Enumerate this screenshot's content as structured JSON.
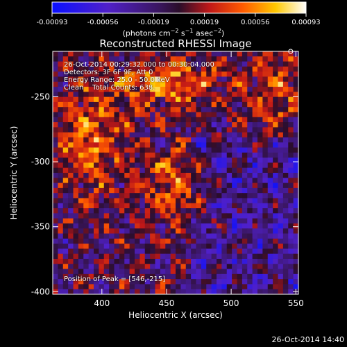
{
  "chart_data": {
    "type": "heatmap",
    "title": "Reconstructed RHESSI Image",
    "xlabel": "Heliocentric X (arcsec)",
    "ylabel": "Heliocentric Y (arcsec)",
    "xlim": [
      362,
      552
    ],
    "ylim": [
      -402,
      -215
    ],
    "xticks": [
      400,
      450,
      500,
      550
    ],
    "yticks": [
      -250,
      -300,
      -350,
      -400
    ],
    "colorbar": {
      "ticks": [
        "-0.00093",
        "-0.00056",
        "-0.00019",
        "0.00019",
        "0.00056",
        "0.00093"
      ],
      "range": [
        -0.00093,
        0.00093
      ],
      "units_prefix": "(photons cm",
      "units_mid": " s",
      "units_mid2": " asec",
      "units_suffix": ")",
      "exp1": "−2",
      "exp2": "−1",
      "exp3": "−2"
    },
    "peak": {
      "x": 546,
      "y": -215
    },
    "peak_label": "Position of Peak = [546,-215]"
  },
  "annotations": {
    "line1": "26-Oct-2014 00:29:32.000 to 00:30:04.000",
    "line2": "Detectors: 3F 6F 9F, Att 0",
    "line3": "Energy Range: 25.0 - 50.0 keV",
    "line4": "Clean    Total Counts: 638."
  },
  "timestamp": "26-Oct-2014 14:40",
  "colors": {
    "background": "#000000",
    "colormap": "rhessi-rainbow"
  }
}
